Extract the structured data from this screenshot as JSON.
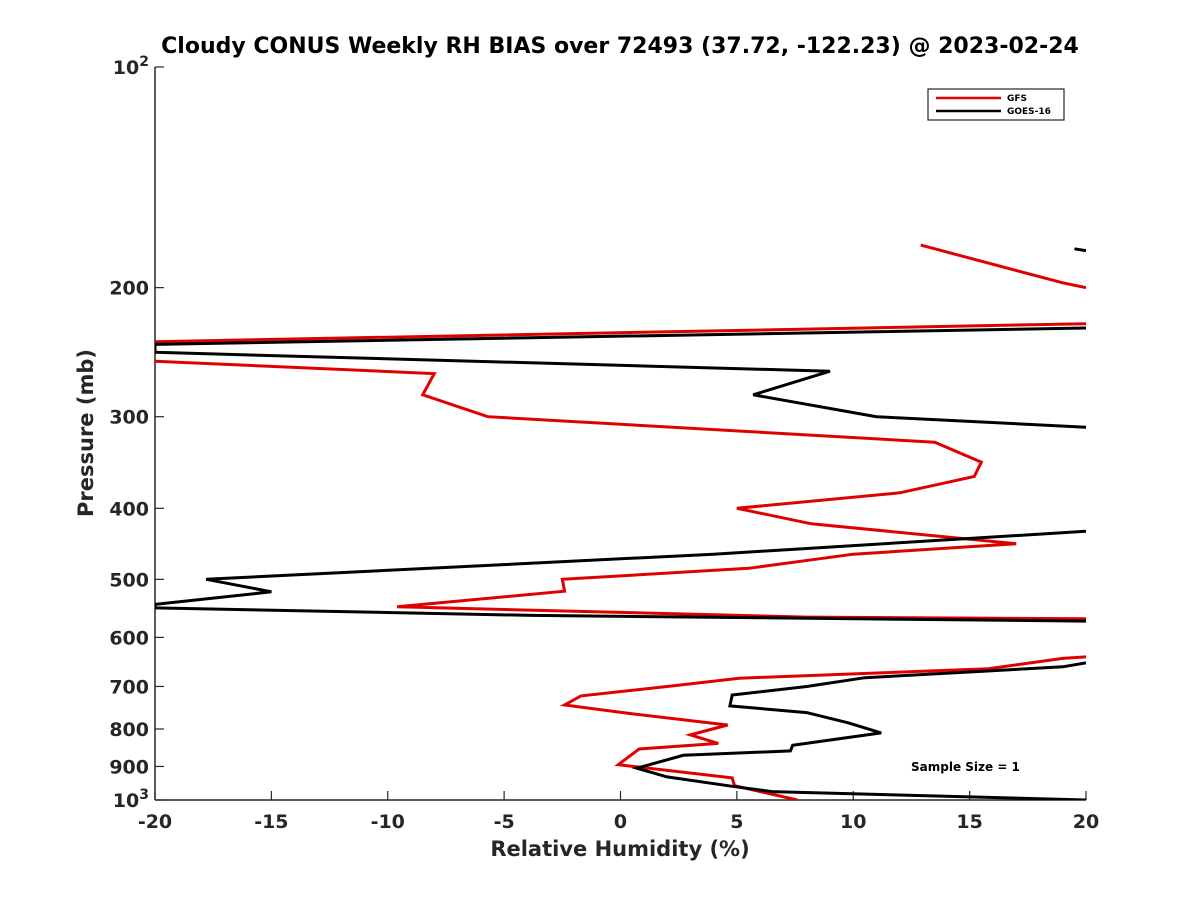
{
  "chart_data": {
    "type": "line",
    "title": "Cloudy CONUS Weekly RH BIAS over 72493 (37.72, -122.23) @ 2023-02-24",
    "xlabel": "Relative Humidity (%)",
    "ylabel": "Pressure (mb)",
    "xlim": [
      -20,
      20
    ],
    "ylim": [
      100,
      1000
    ],
    "y_scale": "log",
    "y_reversed": true,
    "x_ticks": [
      -20,
      -15,
      -10,
      -5,
      0,
      5,
      10,
      15,
      20
    ],
    "x_tick_labels": [
      "-20",
      "-15",
      "-10",
      "-5",
      "0",
      "5",
      "10",
      "15",
      "20"
    ],
    "y_ticks": [
      {
        "value": 100,
        "base": "10",
        "exp": "2"
      },
      {
        "value": 200,
        "label": "200"
      },
      {
        "value": 300,
        "label": "300"
      },
      {
        "value": 400,
        "label": "400"
      },
      {
        "value": 500,
        "label": "500"
      },
      {
        "value": 600,
        "label": "600"
      },
      {
        "value": 700,
        "label": "700"
      },
      {
        "value": 800,
        "label": "800"
      },
      {
        "value": 900,
        "label": "900"
      },
      {
        "value": 1000,
        "base": "10",
        "exp": "3"
      }
    ],
    "grid": false,
    "legend_position": "top-right",
    "series": [
      {
        "name": "GFS",
        "color": "#e00000",
        "segments": [
          [
            [
              12.9,
              175
            ],
            [
              19.0,
              197
            ],
            [
              20.0,
              200
            ]
          ],
          [
            [
              20.0,
              224
            ],
            [
              -20.0,
              237
            ]
          ],
          [
            [
              -20.0,
              252
            ],
            [
              -8.0,
              262
            ],
            [
              -8.5,
              280
            ],
            [
              -5.7,
              300
            ],
            [
              13.5,
              325
            ],
            [
              15.5,
              346
            ],
            [
              15.2,
              362
            ],
            [
              12.0,
              381
            ],
            [
              5.0,
              400
            ],
            [
              8.2,
              420
            ],
            [
              17.0,
              447
            ],
            [
              10.0,
              462
            ],
            [
              5.5,
              483
            ],
            [
              -2.5,
              500
            ],
            [
              -2.4,
              519
            ],
            [
              -9.6,
              545
            ],
            [
              8.0,
              563
            ],
            [
              20.0,
              566
            ]
          ],
          [
            [
              20.0,
              638
            ],
            [
              19.0,
              641
            ],
            [
              15.8,
              662
            ],
            [
              5.1,
              682
            ],
            [
              2.0,
              700
            ],
            [
              -1.7,
              721
            ],
            [
              -2.4,
              742
            ],
            [
              0.4,
              762
            ],
            [
              4.6,
              790
            ],
            [
              3.0,
              815
            ],
            [
              4.2,
              837
            ],
            [
              0.8,
              852
            ],
            [
              -0.1,
              895
            ],
            [
              4.8,
              933
            ],
            [
              4.9,
              956
            ],
            [
              7.6,
              1000
            ]
          ]
        ]
      },
      {
        "name": "GOES-16",
        "color": "#000000",
        "segments": [
          [
            [
              19.5,
              177
            ],
            [
              20.0,
              178
            ]
          ],
          [
            [
              20.0,
              227
            ],
            [
              -20.0,
              239
            ],
            [
              -20.0,
              245
            ],
            [
              9.0,
              260
            ],
            [
              5.7,
              280
            ],
            [
              11.0,
              300
            ],
            [
              20.0,
              310
            ]
          ],
          [
            [
              20.0,
              430
            ],
            [
              4.0,
              462
            ],
            [
              -17.8,
              500
            ],
            [
              -15.0,
              520
            ],
            [
              -20.0,
              541
            ],
            [
              -20.0,
              547
            ],
            [
              -3.8,
              560
            ],
            [
              20.0,
              570
            ]
          ],
          [
            [
              20.0,
              650
            ],
            [
              19.0,
              658
            ],
            [
              10.5,
              681
            ],
            [
              8.0,
              700
            ],
            [
              4.8,
              719
            ],
            [
              4.7,
              744
            ],
            [
              8.0,
              760
            ],
            [
              9.8,
              785
            ],
            [
              11.2,
              810
            ],
            [
              7.4,
              842
            ],
            [
              7.3,
              857
            ],
            [
              2.7,
              869
            ],
            [
              0.7,
              905
            ],
            [
              2.0,
              930
            ],
            [
              4.8,
              958
            ],
            [
              6.5,
              974
            ],
            [
              20.0,
              1000
            ]
          ]
        ]
      }
    ],
    "annotations": [
      {
        "text": "Sample Size = 1",
        "x": 15.5,
        "y": 900
      }
    ]
  }
}
